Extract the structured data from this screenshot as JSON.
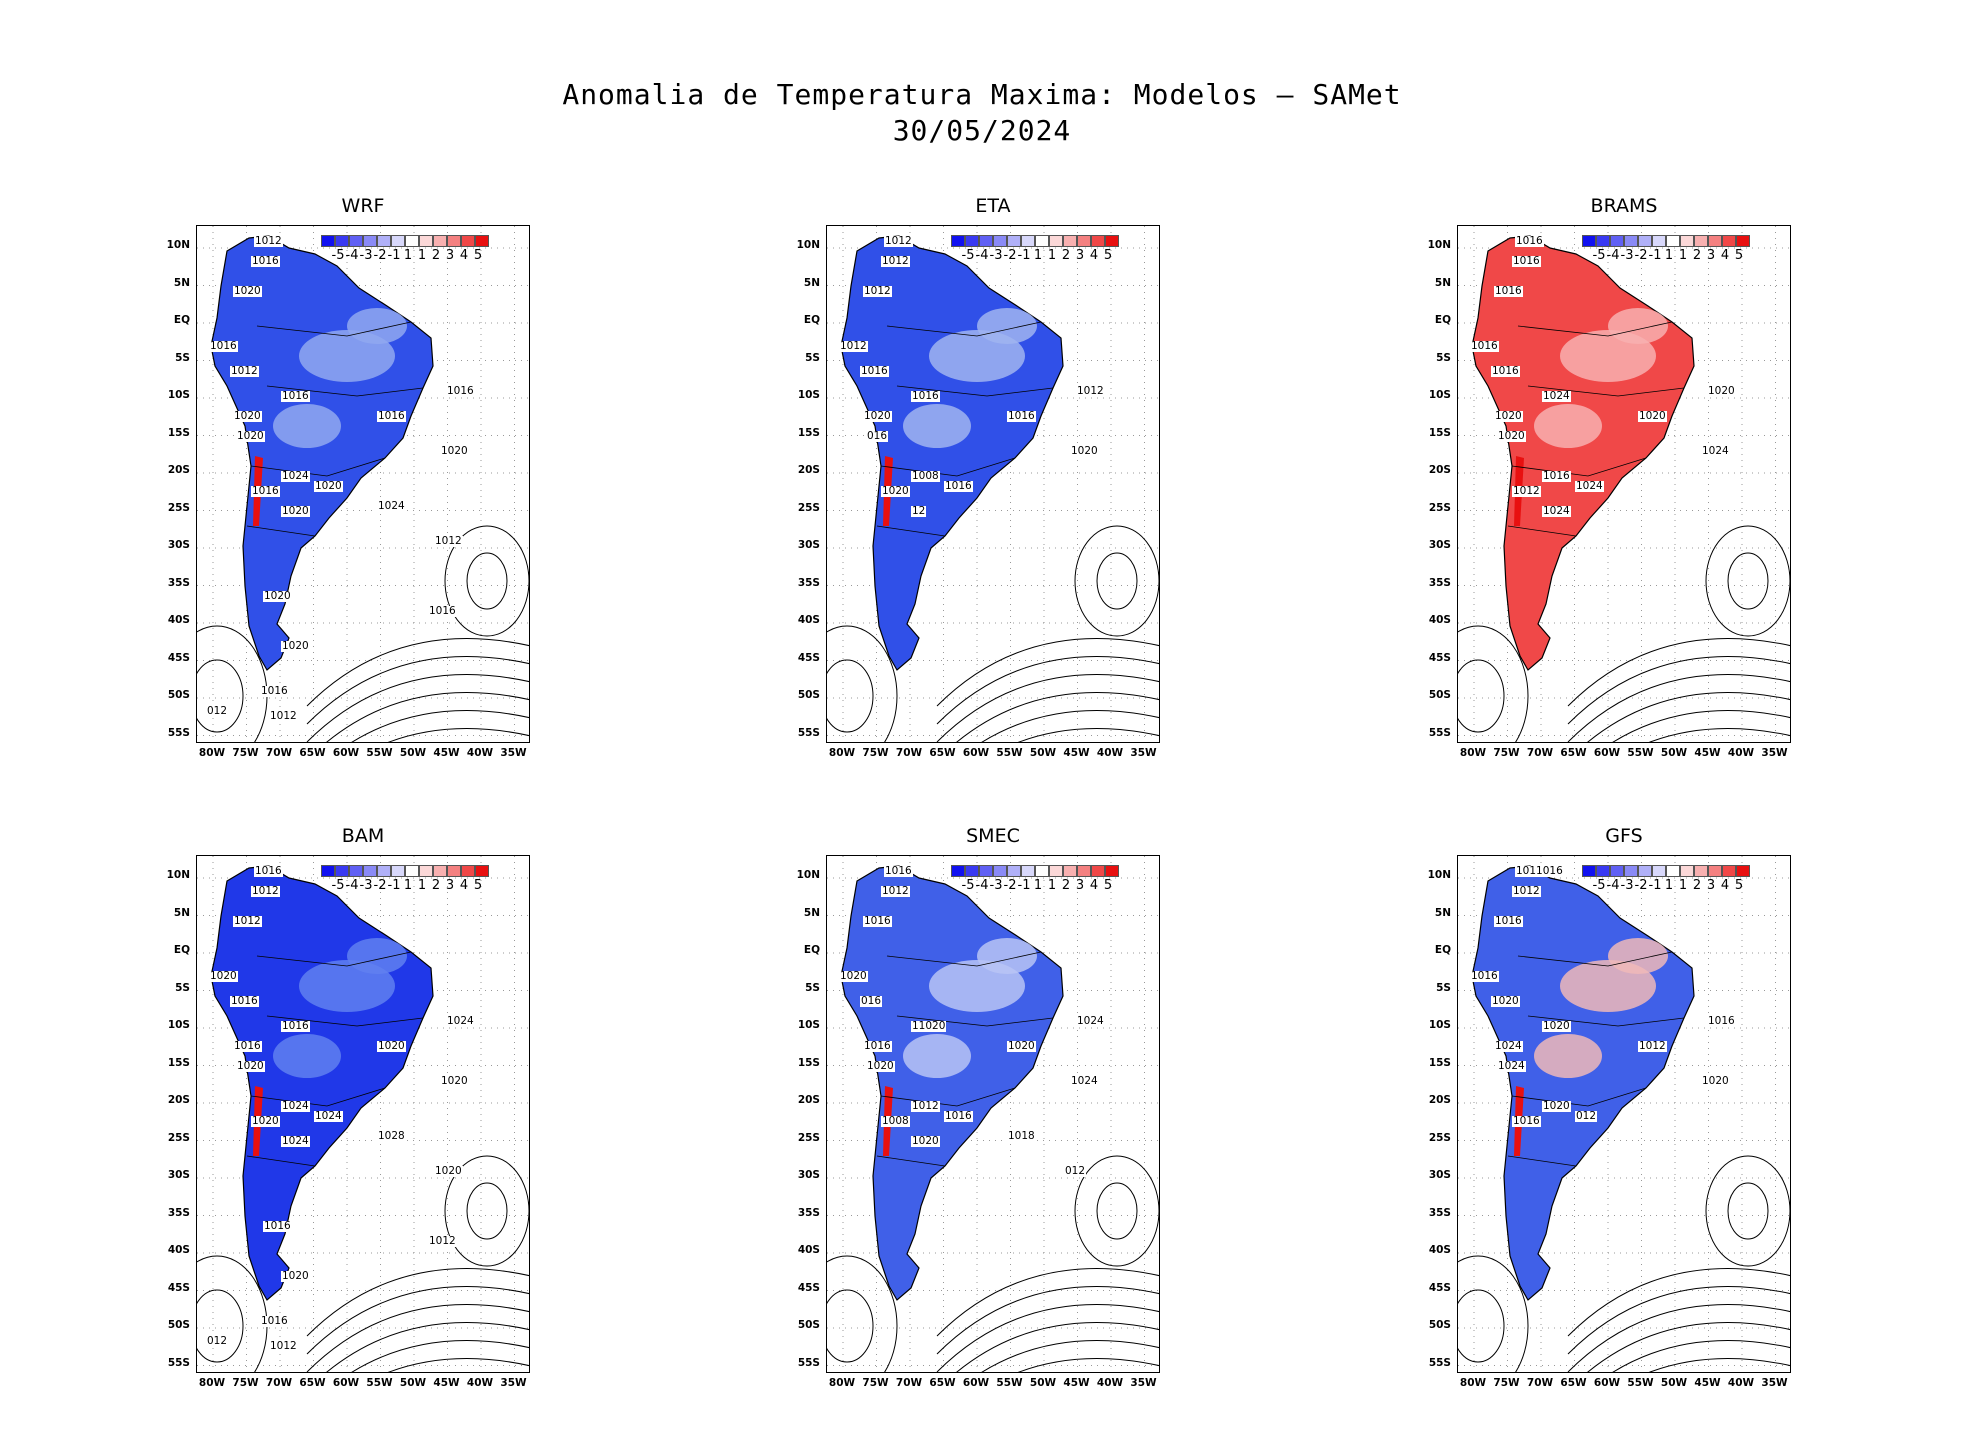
{
  "header": {
    "line1": "Anomalia de Temperatura Maxima: Modelos — SAMet",
    "line2": "30/05/2024"
  },
  "axes": {
    "lat_labels": [
      "10N",
      "5N",
      "EQ",
      "5S",
      "10S",
      "15S",
      "20S",
      "25S",
      "30S",
      "35S",
      "40S",
      "45S",
      "50S",
      "55S"
    ],
    "lon_labels": [
      "80W",
      "75W",
      "70W",
      "65W",
      "60W",
      "55W",
      "50W",
      "45W",
      "40W",
      "35W"
    ]
  },
  "colorbar": {
    "labels": [
      "-5",
      "-4",
      "-3",
      "-2",
      "-1",
      "1",
      "1",
      "2",
      "3",
      "4",
      "5"
    ],
    "colors": [
      "#1010f0",
      "#3a3af2",
      "#6060f4",
      "#8a8af6",
      "#b0b0f8",
      "#d8d8fb",
      "#ffffff",
      "#fbd8d8",
      "#f8b0b0",
      "#f48080",
      "#f04848",
      "#e81010"
    ]
  },
  "panels": [
    {
      "name": "WRF",
      "fill": "#3050e8",
      "fill2": "#90a8f0",
      "isobars": [
        "1012",
        "1016",
        "1020",
        "1016",
        "1012",
        "1016",
        "1020",
        "1020",
        "1016",
        "1016",
        "1020",
        "1024",
        "1016",
        "1020",
        "1020",
        "1024",
        "1012",
        "1016",
        "1020",
        "1020",
        "1016",
        "1012",
        "012"
      ]
    },
    {
      "name": "ETA",
      "fill": "#3050e8",
      "fill2": "#a0b4f0",
      "isobars": [
        "1012",
        "1012",
        "1012",
        "1012",
        "1016",
        "1016",
        "1020",
        "016",
        "1016",
        "1012",
        "1020",
        "1008",
        "1020",
        "1016",
        "12"
      ]
    },
    {
      "name": "BRAMS",
      "fill": "#f04848",
      "fill2": "#f8b0b0",
      "isobars": [
        "1016",
        "1016",
        "1016",
        "1016",
        "1016",
        "1024",
        "1020",
        "1020",
        "1020",
        "1020",
        "1024",
        "1016",
        "1012",
        "1024",
        "1024"
      ]
    },
    {
      "name": "BAM",
      "fill": "#2038e8",
      "fill2": "#6080f0",
      "isobars": [
        "1016",
        "1012",
        "1012",
        "1020",
        "1016",
        "1016",
        "1016",
        "1020",
        "1020",
        "1024",
        "1020",
        "1024",
        "1020",
        "1024",
        "1024",
        "1028",
        "1020",
        "1012",
        "1016",
        "1020",
        "1016",
        "1012",
        "012"
      ]
    },
    {
      "name": "SMEC",
      "fill": "#4060e8",
      "fill2": "#b8c4f4",
      "isobars": [
        "1016",
        "1012",
        "1016",
        "1020",
        "016",
        "11020",
        "1016",
        "1020",
        "1020",
        "1024",
        "1024",
        "1012",
        "1008",
        "1016",
        "1020",
        "1018",
        "012"
      ]
    },
    {
      "name": "GFS",
      "fill": "#4060e8",
      "fill2": "#f0b8b8",
      "isobars": [
        "1011016",
        "1012",
        "1016",
        "1016",
        "1020",
        "1020",
        "1024",
        "1024",
        "1012",
        "1016",
        "1020",
        "1020",
        "1016",
        "012"
      ]
    }
  ]
}
